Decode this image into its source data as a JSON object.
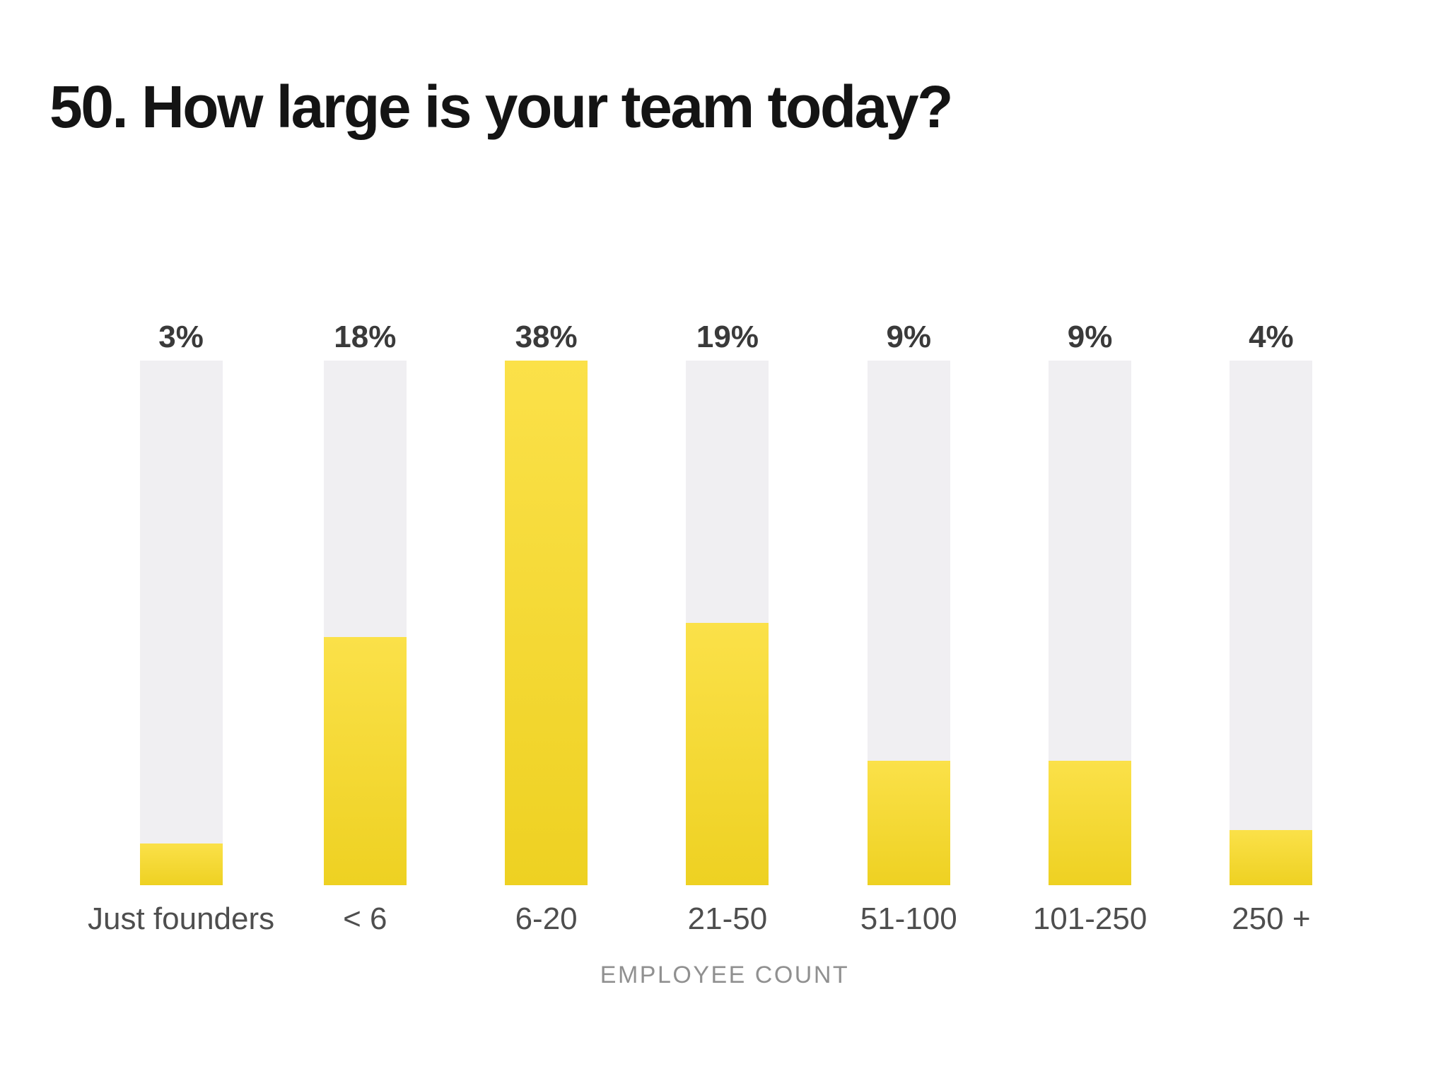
{
  "page": {
    "background": "#ffffff"
  },
  "chart_data": {
    "type": "bar",
    "title": "50. How large is your team today?",
    "categories": [
      "Just founders",
      "< 6",
      "6-20",
      "21-50",
      "51-100",
      "101-250",
      "250 +"
    ],
    "values": [
      3,
      18,
      38,
      19,
      9,
      9,
      4
    ],
    "value_labels": [
      "3%",
      "18%",
      "38%",
      "19%",
      "9%",
      "9%",
      "4%"
    ],
    "xlabel": "EMPLOYEE COUNT",
    "ylabel": "",
    "ylim": [
      0,
      38
    ],
    "unit": "percent",
    "grid": false,
    "legend": "none",
    "orientation": "vertical",
    "colors": {
      "title": "#141414",
      "value_label": "#3a3a3a",
      "category_label": "#4e4e4e",
      "axis_label": "#909090",
      "bar_track": "#f0eff2",
      "bar_fill_top": "#fbe149",
      "bar_fill_bottom": "#eed122"
    }
  }
}
